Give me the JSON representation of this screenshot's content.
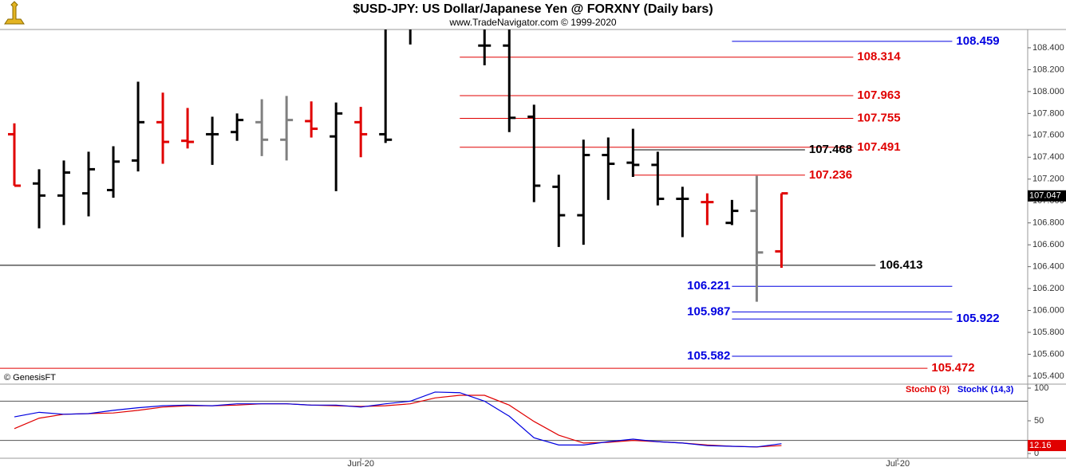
{
  "chart_data": [
    {
      "type": "ohlc",
      "title": "$USD-JPY:  US Dollar/Japanese Yen @ FORXNY  (Daily bars)",
      "subtitle": "www.TradeNavigator.com © 1999-2020",
      "source_note": "© GenesisFT",
      "x": [
        0,
        1,
        2,
        3,
        4,
        5,
        6,
        7,
        8,
        9,
        10,
        11,
        12,
        13,
        14,
        15,
        16,
        19,
        20,
        21,
        22,
        23,
        24,
        25,
        26,
        27,
        28,
        29,
        30,
        31
      ],
      "open": [
        107.61,
        107.16,
        107.05,
        107.07,
        107.1,
        107.37,
        107.72,
        107.55,
        107.61,
        107.63,
        107.72,
        107.56,
        107.73,
        107.59,
        107.72,
        107.61,
        null,
        108.42,
        108.42,
        107.77,
        107.13,
        106.87,
        107.42,
        107.35,
        107.33,
        107.02,
        106.99,
        106.8,
        106.91,
        106.54
      ],
      "high": [
        107.71,
        107.29,
        107.37,
        107.45,
        107.5,
        108.09,
        107.99,
        107.85,
        107.77,
        107.8,
        107.93,
        107.96,
        107.91,
        107.9,
        107.86,
        108.57,
        108.57,
        108.57,
        108.57,
        107.88,
        107.24,
        107.56,
        107.58,
        107.66,
        107.45,
        107.13,
        107.07,
        107.01,
        107.23,
        107.07
      ],
      "low": [
        107.14,
        106.75,
        106.78,
        106.86,
        107.03,
        107.27,
        107.34,
        107.48,
        107.33,
        107.55,
        107.41,
        107.37,
        107.58,
        107.09,
        107.4,
        107.53,
        108.43,
        108.24,
        107.63,
        106.99,
        106.58,
        106.6,
        107.01,
        107.22,
        106.96,
        106.67,
        106.78,
        106.78,
        106.08,
        106.39
      ],
      "close": [
        107.14,
        107.05,
        107.26,
        107.29,
        107.36,
        107.72,
        107.54,
        107.54,
        107.61,
        107.74,
        107.56,
        107.74,
        107.66,
        107.8,
        107.61,
        107.56,
        null,
        108.42,
        107.76,
        107.14,
        106.87,
        107.42,
        107.34,
        107.33,
        107.02,
        107.02,
        106.99,
        106.91,
        106.53,
        107.07
      ],
      "colors": [
        "#e00000",
        "#000000",
        "#000000",
        "#000000",
        "#000000",
        "#000000",
        "#e00000",
        "#e00000",
        "#000000",
        "#000000",
        "#808080",
        "#808080",
        "#e00000",
        "#000000",
        "#e00000",
        "#000000",
        "#000000",
        "#000000",
        "#000000",
        "#000000",
        "#000000",
        "#000000",
        "#000000",
        "#000000",
        "#000000",
        "#000000",
        "#e00000",
        "#000000",
        "#808080",
        "#e00000"
      ],
      "last_value": 107.047,
      "levels": [
        {
          "value": 108.459,
          "color": "#0000e0"
        },
        {
          "value": 108.314,
          "color": "#e00000"
        },
        {
          "value": 107.963,
          "color": "#e00000"
        },
        {
          "value": 107.755,
          "color": "#e00000"
        },
        {
          "value": 107.491,
          "color": "#e00000"
        },
        {
          "value": 107.468,
          "color": "#000000"
        },
        {
          "value": 107.236,
          "color": "#e00000"
        },
        {
          "value": 106.413,
          "color": "#000000"
        },
        {
          "value": 106.221,
          "color": "#0000e0"
        },
        {
          "value": 105.987,
          "color": "#0000e0"
        },
        {
          "value": 105.922,
          "color": "#0000e0"
        },
        {
          "value": 105.582,
          "color": "#0000e0"
        },
        {
          "value": 105.472,
          "color": "#e00000"
        }
      ],
      "xlim": [
        -0.58,
        40.95
      ],
      "ylim": [
        105.327,
        108.567
      ],
      "yticks": [
        {
          "value": 105.4,
          "label": "105.400"
        },
        {
          "value": 105.6,
          "label": "105.600"
        },
        {
          "value": 105.8,
          "label": "105.800"
        },
        {
          "value": 106.0,
          "label": "106.000"
        },
        {
          "value": 106.2,
          "label": "106.200"
        },
        {
          "value": 106.4,
          "label": "106.400"
        },
        {
          "value": 106.6,
          "label": "106.600"
        },
        {
          "value": 106.8,
          "label": "106.800"
        },
        {
          "value": 107.0,
          "label": "107.000"
        },
        {
          "value": 107.2,
          "label": "107.200"
        },
        {
          "value": 107.4,
          "label": "107.400"
        },
        {
          "value": 107.6,
          "label": "107.600"
        },
        {
          "value": 107.8,
          "label": "107.800"
        },
        {
          "value": 108.0,
          "label": "108.000"
        },
        {
          "value": 108.2,
          "label": "108.200"
        },
        {
          "value": 108.4,
          "label": "108.400"
        }
      ]
    },
    {
      "type": "line",
      "x": [
        0,
        1,
        2,
        3,
        4,
        5,
        6,
        7,
        8,
        9,
        10,
        11,
        12,
        13,
        14,
        15,
        16,
        17,
        18,
        19,
        20,
        21,
        22,
        23,
        24,
        25,
        26,
        27,
        28,
        29,
        30,
        31
      ],
      "series": [
        {
          "name": "StochD (3)",
          "color": "#e00000",
          "values": [
            38,
            54,
            60,
            61,
            62,
            66,
            71,
            73,
            73,
            74,
            76,
            76,
            74,
            73,
            72,
            73,
            76,
            85,
            89,
            89,
            74,
            49,
            28,
            16,
            17,
            20,
            18,
            16,
            13,
            11,
            10,
            12.16
          ]
        },
        {
          "name": "StochK (14,3)",
          "color": "#0000e0",
          "values": [
            56,
            63,
            60,
            61,
            66,
            70,
            73,
            74,
            73,
            76,
            76,
            76,
            74,
            74,
            71,
            76,
            80,
            94,
            93,
            80,
            57,
            24,
            13,
            13,
            18,
            22,
            18,
            16,
            12,
            11,
            10,
            15
          ]
        }
      ],
      "reference_lines": [
        20,
        80
      ],
      "xlim": [
        -0.58,
        40.95
      ],
      "ylim": [
        -7.3,
        106.1
      ],
      "yticks": [
        0,
        50,
        100
      ],
      "xticks": [
        {
          "value": 14,
          "label": "Jun-20"
        },
        {
          "value": 35.7,
          "label": "Jul-20"
        }
      ]
    }
  ]
}
